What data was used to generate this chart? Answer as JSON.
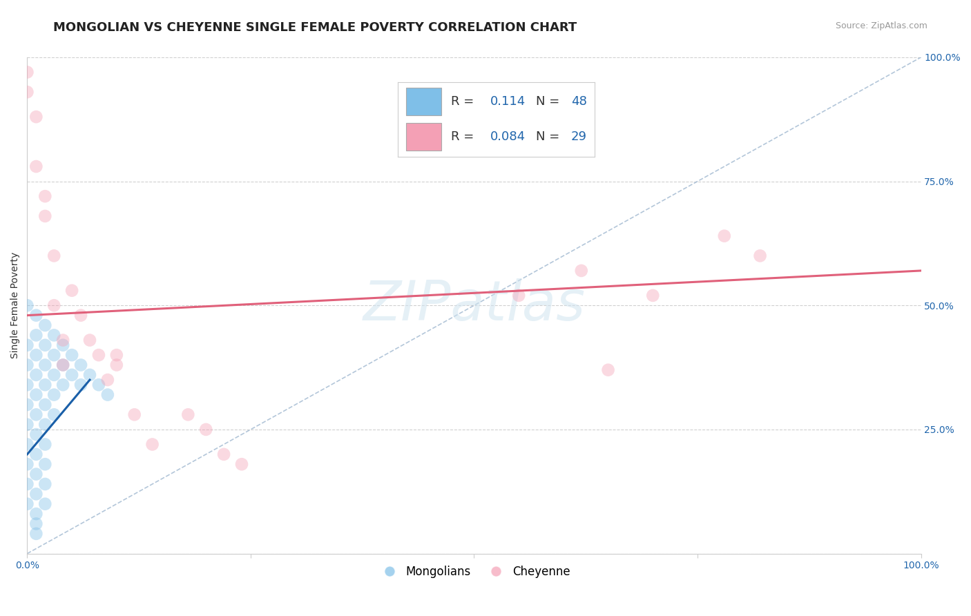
{
  "title": "MONGOLIAN VS CHEYENNE SINGLE FEMALE POVERTY CORRELATION CHART",
  "source": "Source: ZipAtlas.com",
  "ylabel": "Single Female Poverty",
  "xlim": [
    0.0,
    1.0
  ],
  "ylim": [
    0.0,
    1.0
  ],
  "mongolian_color": "#7fbfe8",
  "cheyenne_color": "#f4a0b5",
  "mongolian_R": 0.114,
  "mongolian_N": 48,
  "cheyenne_R": 0.084,
  "cheyenne_N": 29,
  "mongolian_scatter_x": [
    0.0,
    0.0,
    0.0,
    0.0,
    0.0,
    0.0,
    0.0,
    0.0,
    0.0,
    0.0,
    0.01,
    0.01,
    0.01,
    0.01,
    0.01,
    0.01,
    0.01,
    0.01,
    0.01,
    0.01,
    0.01,
    0.01,
    0.01,
    0.02,
    0.02,
    0.02,
    0.02,
    0.02,
    0.02,
    0.02,
    0.02,
    0.02,
    0.02,
    0.03,
    0.03,
    0.03,
    0.03,
    0.03,
    0.04,
    0.04,
    0.04,
    0.05,
    0.05,
    0.06,
    0.06,
    0.07,
    0.08,
    0.09
  ],
  "mongolian_scatter_y": [
    0.5,
    0.42,
    0.38,
    0.34,
    0.3,
    0.26,
    0.22,
    0.18,
    0.14,
    0.1,
    0.48,
    0.44,
    0.4,
    0.36,
    0.32,
    0.28,
    0.24,
    0.2,
    0.16,
    0.12,
    0.08,
    0.06,
    0.04,
    0.46,
    0.42,
    0.38,
    0.34,
    0.3,
    0.26,
    0.22,
    0.18,
    0.14,
    0.1,
    0.44,
    0.4,
    0.36,
    0.32,
    0.28,
    0.42,
    0.38,
    0.34,
    0.4,
    0.36,
    0.38,
    0.34,
    0.36,
    0.34,
    0.32
  ],
  "cheyenne_scatter_x": [
    0.01,
    0.01,
    0.02,
    0.03,
    0.03,
    0.04,
    0.04,
    0.05,
    0.06,
    0.07,
    0.08,
    0.09,
    0.1,
    0.1,
    0.12,
    0.14,
    0.18,
    0.2,
    0.22,
    0.24,
    0.55,
    0.62,
    0.65,
    0.7,
    0.78,
    0.82,
    0.0,
    0.0,
    0.02
  ],
  "cheyenne_scatter_y": [
    0.88,
    0.78,
    0.68,
    0.6,
    0.5,
    0.43,
    0.38,
    0.53,
    0.48,
    0.43,
    0.4,
    0.35,
    0.4,
    0.38,
    0.28,
    0.22,
    0.28,
    0.25,
    0.2,
    0.18,
    0.52,
    0.57,
    0.37,
    0.52,
    0.64,
    0.6,
    0.97,
    0.93,
    0.72
  ],
  "mongolian_trend_x": [
    0.0,
    0.07
  ],
  "mongolian_trend_y": [
    0.2,
    0.35
  ],
  "cheyenne_trend_x": [
    0.0,
    1.0
  ],
  "cheyenne_trend_y": [
    0.48,
    0.57
  ],
  "ref_line_x": [
    0.0,
    1.0
  ],
  "ref_line_y": [
    0.0,
    1.0
  ],
  "watermark": "ZIPatlas",
  "title_fontsize": 13,
  "axis_label_fontsize": 10,
  "tick_fontsize": 10,
  "legend_fontsize": 13,
  "background_color": "#ffffff",
  "grid_color": "#d0d0d0",
  "mongolian_trend_color": "#1a5fa8",
  "cheyenne_trend_color": "#e0607a",
  "ref_line_color": "#a0b8d0",
  "scatter_size": 180,
  "scatter_alpha": 0.4
}
